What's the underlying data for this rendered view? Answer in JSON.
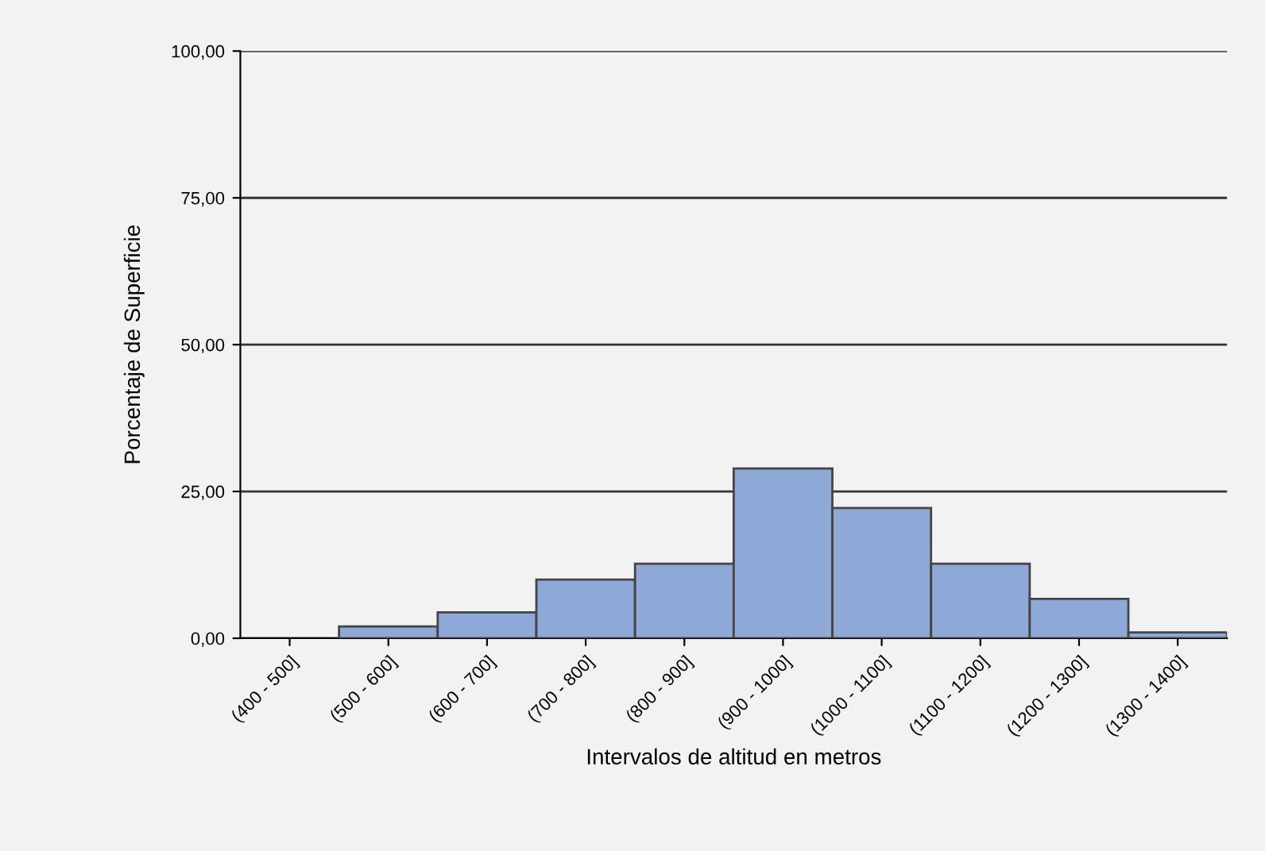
{
  "chart_data": {
    "type": "bar",
    "xlabel": "Intervalos de altitud en metros",
    "ylabel": "Porcentaje de Superficie",
    "categories": [
      "(400 - 500]",
      "(500 - 600]",
      "(600 - 700]",
      "(700 - 800]",
      "(800 - 900]",
      "(900 - 1000]",
      "(1000 - 1100]",
      "(1100 - 1200]",
      "(1200 - 1300]",
      "(1300 - 1400]"
    ],
    "values": [
      0,
      2.0,
      4.4,
      10.0,
      12.7,
      28.9,
      22.2,
      12.7,
      6.7,
      1.0
    ],
    "color": "#8ea8d8",
    "ylim": [
      0,
      100
    ],
    "yticks": [
      {
        "value": 0,
        "label": "0,00"
      },
      {
        "value": 25,
        "label": "25,00"
      },
      {
        "value": 50,
        "label": "50,00"
      },
      {
        "value": 75,
        "label": "75,00"
      },
      {
        "value": 100,
        "label": "100,00"
      }
    ],
    "grid": "y",
    "legend": false
  }
}
